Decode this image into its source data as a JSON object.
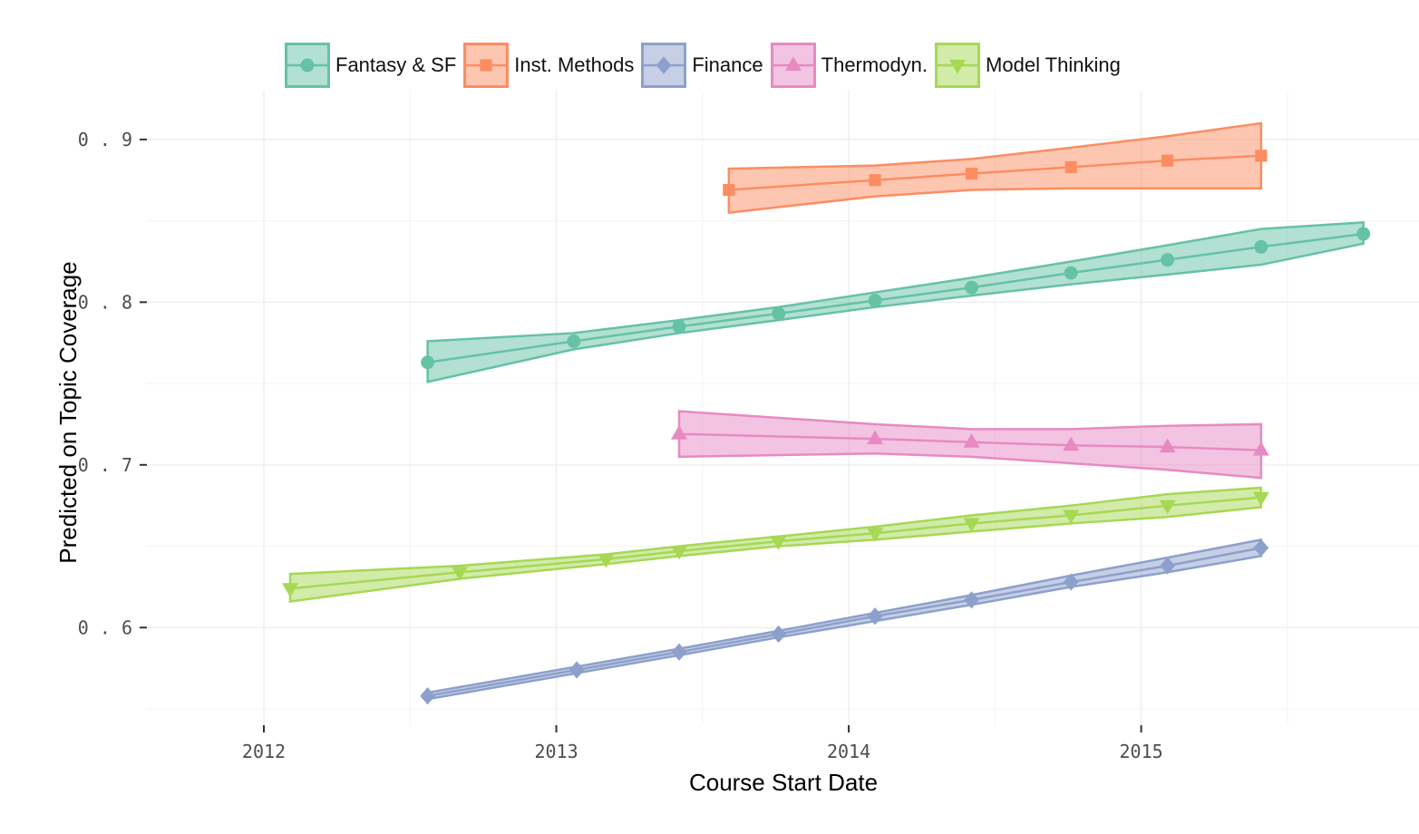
{
  "chart_data": {
    "type": "line",
    "xlabel": "Course Start Date",
    "ylabel": "Predicted on Topic Coverage",
    "x_ticks": [
      "2012",
      "2013",
      "2014",
      "2015"
    ],
    "y_ticks": [
      "0.6",
      "0.7",
      "0.8",
      "0.9"
    ],
    "xlim": [
      2011.6,
      2015.95
    ],
    "ylim": [
      0.54,
      0.93
    ],
    "grid": true,
    "legend_position": "top",
    "series": [
      {
        "name": "Fantasy & SF",
        "color": "#66c2a5",
        "marker": "circle",
        "points": [
          {
            "x": 2012.56,
            "y": 0.763,
            "lo": 0.751,
            "hi": 0.776
          },
          {
            "x": 2013.06,
            "y": 0.776,
            "lo": 0.771,
            "hi": 0.781
          },
          {
            "x": 2013.42,
            "y": 0.785,
            "lo": 0.781,
            "hi": 0.789
          },
          {
            "x": 2013.76,
            "y": 0.793,
            "lo": 0.789,
            "hi": 0.797
          },
          {
            "x": 2014.09,
            "y": 0.801,
            "lo": 0.797,
            "hi": 0.806
          },
          {
            "x": 2014.42,
            "y": 0.809,
            "lo": 0.804,
            "hi": 0.815
          },
          {
            "x": 2014.76,
            "y": 0.818,
            "lo": 0.811,
            "hi": 0.825
          },
          {
            "x": 2015.09,
            "y": 0.826,
            "lo": 0.817,
            "hi": 0.835
          },
          {
            "x": 2015.41,
            "y": 0.834,
            "lo": 0.823,
            "hi": 0.845
          },
          {
            "x": 2015.76,
            "y": 0.842,
            "lo": 0.836,
            "hi": 0.849
          }
        ]
      },
      {
        "name": "Inst. Methods",
        "color": "#fc8d62",
        "marker": "square",
        "points": [
          {
            "x": 2013.59,
            "y": 0.869,
            "lo": 0.855,
            "hi": 0.882
          },
          {
            "x": 2014.09,
            "y": 0.875,
            "lo": 0.865,
            "hi": 0.884
          },
          {
            "x": 2014.42,
            "y": 0.879,
            "lo": 0.869,
            "hi": 0.888
          },
          {
            "x": 2014.76,
            "y": 0.883,
            "lo": 0.87,
            "hi": 0.895
          },
          {
            "x": 2015.09,
            "y": 0.887,
            "lo": 0.87,
            "hi": 0.902
          },
          {
            "x": 2015.41,
            "y": 0.89,
            "lo": 0.87,
            "hi": 0.91
          }
        ]
      },
      {
        "name": "Finance",
        "color": "#8da0cb",
        "marker": "diamond",
        "points": [
          {
            "x": 2012.56,
            "y": 0.558,
            "lo": 0.556,
            "hi": 0.56
          },
          {
            "x": 2013.07,
            "y": 0.574,
            "lo": 0.572,
            "hi": 0.576
          },
          {
            "x": 2013.42,
            "y": 0.585,
            "lo": 0.583,
            "hi": 0.587
          },
          {
            "x": 2013.76,
            "y": 0.596,
            "lo": 0.594,
            "hi": 0.598
          },
          {
            "x": 2014.09,
            "y": 0.607,
            "lo": 0.604,
            "hi": 0.609
          },
          {
            "x": 2014.42,
            "y": 0.617,
            "lo": 0.614,
            "hi": 0.62
          },
          {
            "x": 2014.76,
            "y": 0.628,
            "lo": 0.625,
            "hi": 0.632
          },
          {
            "x": 2015.09,
            "y": 0.638,
            "lo": 0.634,
            "hi": 0.643
          },
          {
            "x": 2015.41,
            "y": 0.649,
            "lo": 0.644,
            "hi": 0.654
          }
        ]
      },
      {
        "name": "Thermodyn.",
        "color": "#e78ac3",
        "marker": "triangle-up",
        "points": [
          {
            "x": 2013.42,
            "y": 0.719,
            "lo": 0.705,
            "hi": 0.733
          },
          {
            "x": 2014.09,
            "y": 0.716,
            "lo": 0.707,
            "hi": 0.725
          },
          {
            "x": 2014.42,
            "y": 0.714,
            "lo": 0.705,
            "hi": 0.722
          },
          {
            "x": 2014.76,
            "y": 0.712,
            "lo": 0.701,
            "hi": 0.722
          },
          {
            "x": 2015.09,
            "y": 0.711,
            "lo": 0.697,
            "hi": 0.724
          },
          {
            "x": 2015.41,
            "y": 0.709,
            "lo": 0.692,
            "hi": 0.725
          }
        ]
      },
      {
        "name": "Model Thinking",
        "color": "#a6d854",
        "marker": "triangle-down",
        "points": [
          {
            "x": 2012.09,
            "y": 0.624,
            "lo": 0.616,
            "hi": 0.633
          },
          {
            "x": 2012.67,
            "y": 0.634,
            "lo": 0.63,
            "hi": 0.638
          },
          {
            "x": 2013.17,
            "y": 0.642,
            "lo": 0.639,
            "hi": 0.645
          },
          {
            "x": 2013.42,
            "y": 0.647,
            "lo": 0.644,
            "hi": 0.65
          },
          {
            "x": 2013.76,
            "y": 0.653,
            "lo": 0.65,
            "hi": 0.656
          },
          {
            "x": 2014.09,
            "y": 0.658,
            "lo": 0.654,
            "hi": 0.662
          },
          {
            "x": 2014.42,
            "y": 0.664,
            "lo": 0.659,
            "hi": 0.669
          },
          {
            "x": 2014.76,
            "y": 0.669,
            "lo": 0.664,
            "hi": 0.675
          },
          {
            "x": 2015.09,
            "y": 0.675,
            "lo": 0.668,
            "hi": 0.682
          },
          {
            "x": 2015.41,
            "y": 0.68,
            "lo": 0.674,
            "hi": 0.686
          }
        ]
      }
    ]
  }
}
